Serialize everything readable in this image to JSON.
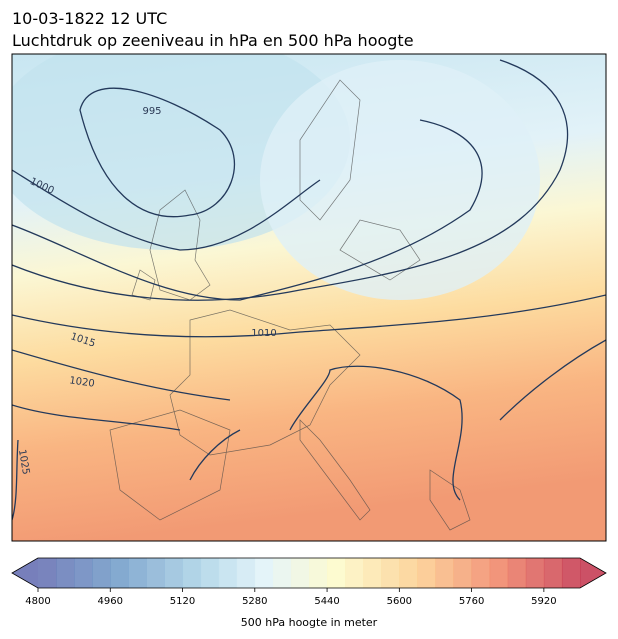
{
  "header": {
    "date": "10-03-1822 12 UTC",
    "title": "Luchtdruk op zeeniveau in hPa en 500 hPa hoogte"
  },
  "map": {
    "contour_labels": [
      995,
      1000,
      1010,
      1015,
      1020,
      1025
    ]
  },
  "colorbar": {
    "label": "500 hPa hoogte in meter",
    "lim": [
      4800,
      6000
    ],
    "ticks": [
      4800,
      4960,
      5120,
      5280,
      5440,
      5600,
      5760,
      5920
    ]
  }
}
